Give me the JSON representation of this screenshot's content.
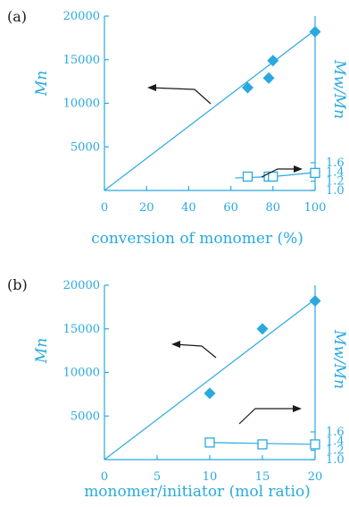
{
  "chart_data": [
    {
      "panel_label": "(a)",
      "type": "scatter",
      "xlabel": "conversion of monomer (%)",
      "xlim": [
        0,
        100
      ],
      "xticks": [
        "0",
        "20",
        "40",
        "60",
        "80",
        "100"
      ],
      "ylabel": "Mn",
      "ylim": [
        0,
        20000
      ],
      "yticks": [
        "5000",
        "10000",
        "15000",
        "20000"
      ],
      "y2label": "Mw/Mn",
      "y2lim": [
        1.0,
        1.6
      ],
      "y2ticks": [
        "1.0",
        "1.2",
        "1.4",
        "1.6"
      ],
      "legend": "none",
      "series": [
        {
          "marker": "filled-diamond",
          "axis": "left",
          "x": [
            68,
            78,
            80,
            100
          ],
          "y": [
            11800,
            12900,
            14900,
            18200
          ]
        },
        {
          "marker": "open-square",
          "axis": "right",
          "x": [
            68,
            78,
            80,
            100
          ],
          "y": [
            1.3,
            1.3,
            1.3,
            1.38
          ]
        }
      ],
      "lines": [
        {
          "axis": "left",
          "x": [
            0,
            100
          ],
          "y": [
            0,
            18400
          ]
        },
        {
          "axis": "right",
          "x": [
            62,
            80,
            100
          ],
          "y": [
            1.27,
            1.3,
            1.39
          ]
        }
      ],
      "arrows": [
        {
          "points_to": "left-axis",
          "color": "#1a1a1a"
        },
        {
          "points_to": "right-axis",
          "color": "#1a1a1a"
        }
      ],
      "colors": {
        "data": "#29a9de",
        "arrow": "#1a1a1a"
      }
    },
    {
      "panel_label": "(b)",
      "type": "scatter",
      "xlabel": "monomer/initiator (mol ratio)",
      "xlim": [
        0,
        20
      ],
      "xticks": [
        "0",
        "5",
        "10",
        "15",
        "20"
      ],
      "ylabel": "Mn",
      "ylim": [
        0,
        20000
      ],
      "yticks": [
        "5000",
        "10000",
        "15000",
        "20000"
      ],
      "y2label": "Mw/Mn",
      "y2lim": [
        1.0,
        1.6
      ],
      "y2ticks": [
        "1.0",
        "1.2",
        "1.4",
        "1.6"
      ],
      "legend": "none",
      "series": [
        {
          "marker": "filled-diamond",
          "axis": "left",
          "x": [
            10,
            15,
            20
          ],
          "y": [
            7600,
            15000,
            18200
          ]
        },
        {
          "marker": "open-square",
          "axis": "right",
          "x": [
            10,
            15,
            20
          ],
          "y": [
            1.37,
            1.33,
            1.33
          ]
        }
      ],
      "lines": [
        {
          "axis": "left",
          "x": [
            0,
            20
          ],
          "y": [
            0,
            18400
          ]
        },
        {
          "axis": "right",
          "x": [
            10,
            15,
            20
          ],
          "y": [
            1.37,
            1.35,
            1.33
          ]
        }
      ],
      "arrows": [
        {
          "points_to": "left-axis",
          "color": "#1a1a1a"
        },
        {
          "points_to": "right-axis",
          "color": "#1a1a1a"
        }
      ],
      "colors": {
        "data": "#29a9de",
        "arrow": "#1a1a1a"
      }
    }
  ]
}
